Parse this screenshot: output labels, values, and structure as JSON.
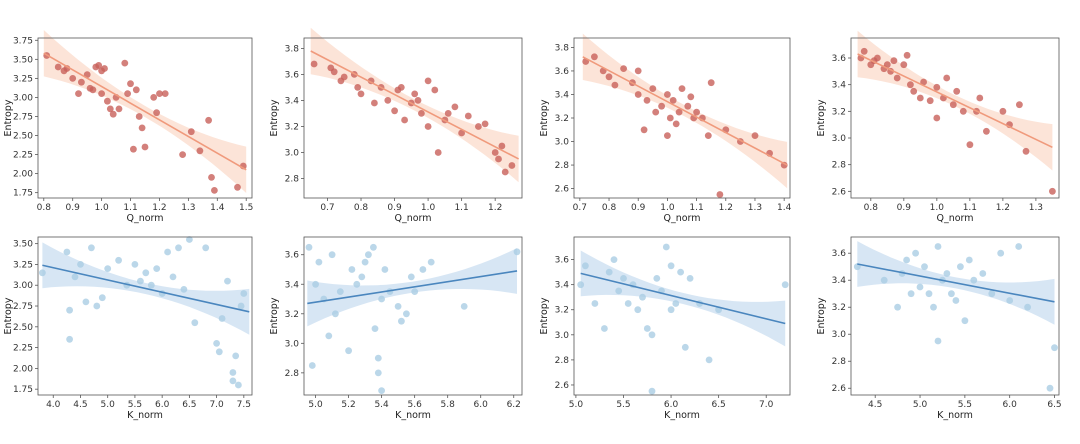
{
  "colors": {
    "q_point": "#c8605a",
    "q_line": "#f09a7c",
    "q_band": "#fbd9c8",
    "k_point": "#aacde3",
    "k_line": "#4a86be",
    "k_band": "#c6dcef",
    "frame": "#555555"
  },
  "chart_data": [
    {
      "type": "scatter",
      "xlabel": "Q_norm",
      "ylabel": "Entropy",
      "xlim": [
        0.78,
        1.52
      ],
      "ylim": [
        1.68,
        3.78
      ],
      "xticks": [
        0.8,
        0.9,
        1.0,
        1.1,
        1.2,
        1.3,
        1.4,
        1.5
      ],
      "yticks": [
        1.75,
        2.0,
        2.25,
        2.5,
        2.75,
        3.0,
        3.25,
        3.5,
        3.75
      ],
      "xtick_labels": [
        "0.8",
        "0.9",
        "1.0",
        "1.1",
        "1.2",
        "1.3",
        "1.4",
        "1.5"
      ],
      "ytick_labels": [
        "1.75",
        "2.00",
        "2.25",
        "2.50",
        "2.75",
        "3.00",
        "3.25",
        "3.50",
        "3.75"
      ],
      "fit": {
        "x": [
          0.8,
          1.5
        ],
        "y": [
          3.58,
          2.05
        ]
      },
      "points": {
        "x": [
          0.81,
          0.85,
          0.87,
          0.88,
          0.9,
          0.92,
          0.93,
          0.95,
          0.96,
          0.97,
          0.98,
          0.99,
          1.0,
          1.0,
          1.01,
          1.02,
          1.03,
          1.04,
          1.05,
          1.06,
          1.08,
          1.09,
          1.1,
          1.11,
          1.12,
          1.13,
          1.14,
          1.15,
          1.18,
          1.19,
          1.2,
          1.22,
          1.28,
          1.31,
          1.34,
          1.37,
          1.38,
          1.39,
          1.47,
          1.49
        ],
        "y": [
          3.55,
          3.4,
          3.35,
          3.38,
          3.25,
          3.05,
          3.2,
          3.3,
          3.12,
          3.1,
          3.4,
          3.42,
          3.35,
          3.05,
          3.38,
          2.95,
          2.85,
          2.78,
          3.0,
          2.85,
          3.45,
          3.05,
          3.18,
          2.32,
          3.1,
          2.75,
          2.6,
          2.35,
          3.0,
          2.8,
          3.05,
          3.05,
          2.25,
          2.55,
          2.3,
          2.7,
          1.95,
          1.78,
          1.82,
          2.1
        ]
      }
    },
    {
      "type": "scatter",
      "xlabel": "Q_norm",
      "ylabel": "Entropy",
      "xlim": [
        0.63,
        1.28
      ],
      "ylim": [
        2.65,
        3.88
      ],
      "xticks": [
        0.7,
        0.8,
        0.9,
        1.0,
        1.1,
        1.2
      ],
      "yticks": [
        2.8,
        3.0,
        3.2,
        3.4,
        3.6,
        3.8
      ],
      "xtick_labels": [
        "0.7",
        "0.8",
        "0.9",
        "1.0",
        "1.1",
        "1.2"
      ],
      "ytick_labels": [
        "2.8",
        "3.0",
        "3.2",
        "3.4",
        "3.6",
        "3.8"
      ],
      "fit": {
        "x": [
          0.65,
          1.27
        ],
        "y": [
          3.78,
          2.95
        ]
      },
      "points": {
        "x": [
          0.66,
          0.71,
          0.72,
          0.74,
          0.75,
          0.78,
          0.79,
          0.8,
          0.83,
          0.84,
          0.86,
          0.88,
          0.9,
          0.91,
          0.92,
          0.93,
          0.95,
          0.96,
          0.97,
          0.98,
          1.0,
          1.0,
          1.02,
          1.03,
          1.05,
          1.06,
          1.08,
          1.1,
          1.12,
          1.15,
          1.17,
          1.2,
          1.21,
          1.22,
          1.23,
          1.25
        ],
        "y": [
          3.68,
          3.65,
          3.62,
          3.55,
          3.58,
          3.6,
          3.5,
          3.45,
          3.55,
          3.38,
          3.5,
          3.4,
          3.32,
          3.48,
          3.5,
          3.25,
          3.38,
          3.45,
          3.4,
          3.3,
          3.55,
          3.2,
          3.48,
          3.0,
          3.25,
          3.3,
          3.35,
          3.15,
          3.28,
          3.2,
          3.22,
          3.0,
          2.95,
          3.05,
          2.85,
          2.9
        ]
      }
    },
    {
      "type": "scatter",
      "xlabel": "Q_norm",
      "ylabel": "Entropy",
      "xlim": [
        0.68,
        1.42
      ],
      "ylim": [
        2.52,
        3.88
      ],
      "xticks": [
        0.7,
        0.8,
        0.9,
        1.0,
        1.1,
        1.2,
        1.3,
        1.4
      ],
      "yticks": [
        2.6,
        2.8,
        3.0,
        3.2,
        3.4,
        3.6,
        3.8
      ],
      "xtick_labels": [
        "0.7",
        "0.8",
        "0.9",
        "1.0",
        "1.1",
        "1.2",
        "1.3",
        "1.4"
      ],
      "ytick_labels": [
        "2.6",
        "2.8",
        "3.0",
        "3.2",
        "3.4",
        "3.6",
        "3.8"
      ],
      "fit": {
        "x": [
          0.71,
          1.41
        ],
        "y": [
          3.72,
          2.8
        ]
      },
      "points": {
        "x": [
          0.72,
          0.75,
          0.78,
          0.8,
          0.82,
          0.85,
          0.88,
          0.9,
          0.9,
          0.92,
          0.93,
          0.95,
          0.96,
          0.98,
          1.0,
          1.0,
          1.01,
          1.02,
          1.03,
          1.04,
          1.05,
          1.07,
          1.08,
          1.09,
          1.1,
          1.12,
          1.14,
          1.15,
          1.18,
          1.2,
          1.25,
          1.3,
          1.35,
          1.4
        ],
        "y": [
          3.68,
          3.72,
          3.6,
          3.55,
          3.48,
          3.62,
          3.5,
          3.6,
          3.4,
          3.1,
          3.35,
          3.45,
          3.25,
          3.3,
          3.05,
          3.4,
          3.2,
          3.35,
          3.15,
          3.25,
          3.45,
          3.3,
          3.38,
          3.2,
          3.25,
          3.2,
          3.05,
          3.5,
          2.55,
          3.1,
          3.0,
          3.05,
          2.9,
          2.8
        ]
      }
    },
    {
      "type": "scatter",
      "xlabel": "Q_norm",
      "ylabel": "Entropy",
      "xlim": [
        0.74,
        1.37
      ],
      "ylim": [
        2.55,
        3.75
      ],
      "xticks": [
        0.8,
        0.9,
        1.0,
        1.1,
        1.2,
        1.3
      ],
      "yticks": [
        2.6,
        2.8,
        3.0,
        3.2,
        3.4,
        3.6
      ],
      "xtick_labels": [
        "0.8",
        "0.9",
        "1.0",
        "1.1",
        "1.2",
        "1.3"
      ],
      "ytick_labels": [
        "2.6",
        "2.8",
        "3.0",
        "3.2",
        "3.4",
        "3.6"
      ],
      "fit": {
        "x": [
          0.76,
          1.35
        ],
        "y": [
          3.63,
          2.93
        ]
      },
      "points": {
        "x": [
          0.77,
          0.78,
          0.8,
          0.81,
          0.82,
          0.84,
          0.85,
          0.86,
          0.87,
          0.88,
          0.9,
          0.91,
          0.92,
          0.93,
          0.95,
          0.96,
          0.98,
          1.0,
          1.0,
          1.02,
          1.03,
          1.05,
          1.06,
          1.08,
          1.1,
          1.12,
          1.13,
          1.15,
          1.2,
          1.22,
          1.25,
          1.27,
          1.35
        ],
        "y": [
          3.6,
          3.65,
          3.55,
          3.58,
          3.6,
          3.52,
          3.55,
          3.5,
          3.58,
          3.45,
          3.55,
          3.62,
          3.4,
          3.35,
          3.3,
          3.42,
          3.28,
          3.38,
          3.15,
          3.3,
          3.45,
          3.25,
          3.35,
          3.2,
          2.95,
          3.2,
          3.3,
          3.05,
          3.2,
          3.1,
          3.25,
          2.9,
          2.6
        ]
      }
    },
    {
      "type": "scatter",
      "xlabel": "K_norm",
      "ylabel": "Entropy",
      "xlim": [
        3.72,
        7.65
      ],
      "ylim": [
        1.68,
        3.58
      ],
      "xticks": [
        4.0,
        4.5,
        5.0,
        5.5,
        6.0,
        6.5,
        7.0,
        7.5
      ],
      "yticks": [
        1.75,
        2.0,
        2.25,
        2.5,
        2.75,
        3.0,
        3.25,
        3.5
      ],
      "xtick_labels": [
        "4.0",
        "4.5",
        "5.0",
        "5.5",
        "6.0",
        "6.5",
        "7.0",
        "7.5"
      ],
      "ytick_labels": [
        "1.75",
        "2.00",
        "2.25",
        "2.50",
        "2.75",
        "3.00",
        "3.25",
        "3.50"
      ],
      "fit": {
        "x": [
          3.8,
          7.6
        ],
        "y": [
          3.24,
          2.68
        ]
      },
      "points": {
        "x": [
          3.8,
          4.25,
          4.3,
          4.3,
          4.4,
          4.5,
          4.6,
          4.7,
          4.8,
          4.9,
          5.0,
          5.2,
          5.35,
          5.5,
          5.6,
          5.7,
          5.8,
          5.9,
          6.0,
          6.1,
          6.2,
          6.3,
          6.4,
          6.5,
          6.6,
          6.8,
          7.0,
          7.05,
          7.1,
          7.2,
          7.3,
          7.3,
          7.35,
          7.4,
          7.45,
          7.5
        ],
        "y": [
          3.15,
          3.4,
          2.7,
          2.35,
          3.1,
          3.25,
          2.8,
          3.45,
          2.75,
          2.85,
          3.2,
          3.3,
          3.0,
          3.25,
          3.05,
          3.15,
          3.0,
          3.2,
          2.9,
          3.4,
          3.1,
          3.45,
          2.95,
          3.55,
          2.55,
          3.45,
          2.3,
          2.2,
          2.6,
          3.05,
          1.85,
          1.95,
          2.15,
          1.8,
          2.75,
          2.9
        ]
      }
    },
    {
      "type": "scatter",
      "xlabel": "K_norm",
      "ylabel": "Entropy",
      "xlim": [
        4.93,
        6.25
      ],
      "ylim": [
        2.65,
        3.72
      ],
      "xticks": [
        5.0,
        5.2,
        5.4,
        5.6,
        5.8,
        6.0,
        6.2
      ],
      "yticks": [
        2.8,
        3.0,
        3.2,
        3.4,
        3.6
      ],
      "xtick_labels": [
        "5.0",
        "5.2",
        "5.4",
        "5.6",
        "5.8",
        "6.0",
        "6.2"
      ],
      "ytick_labels": [
        "2.8",
        "3.0",
        "3.2",
        "3.4",
        "3.6"
      ],
      "fit": {
        "x": [
          4.95,
          6.22
        ],
        "y": [
          3.27,
          3.49
        ]
      },
      "points": {
        "x": [
          4.96,
          4.98,
          5.0,
          5.02,
          5.05,
          5.08,
          5.1,
          5.12,
          5.15,
          5.2,
          5.22,
          5.25,
          5.28,
          5.3,
          5.32,
          5.35,
          5.36,
          5.38,
          5.38,
          5.4,
          5.4,
          5.42,
          5.45,
          5.5,
          5.52,
          5.55,
          5.58,
          5.6,
          5.65,
          5.7,
          5.9,
          6.22
        ],
        "y": [
          3.65,
          2.85,
          3.4,
          3.55,
          3.3,
          3.05,
          3.6,
          3.2,
          3.35,
          2.95,
          3.5,
          3.4,
          3.45,
          3.55,
          3.6,
          3.65,
          3.1,
          2.9,
          2.8,
          2.68,
          3.3,
          3.5,
          3.35,
          3.25,
          3.15,
          3.2,
          3.45,
          3.35,
          3.5,
          3.55,
          3.25,
          3.62
        ]
      }
    },
    {
      "type": "scatter",
      "xlabel": "K_norm",
      "ylabel": "Entropy",
      "xlim": [
        4.98,
        7.25
      ],
      "ylim": [
        2.52,
        3.78
      ],
      "xticks": [
        5.0,
        5.5,
        6.0,
        6.5,
        7.0
      ],
      "yticks": [
        2.6,
        2.8,
        3.0,
        3.2,
        3.4,
        3.6
      ],
      "xtick_labels": [
        "5.0",
        "5.5",
        "6.0",
        "6.5",
        "7.0"
      ],
      "ytick_labels": [
        "2.6",
        "2.8",
        "3.0",
        "3.2",
        "3.4",
        "3.6"
      ],
      "fit": {
        "x": [
          5.05,
          7.2
        ],
        "y": [
          3.49,
          3.09
        ]
      },
      "points": {
        "x": [
          5.05,
          5.1,
          5.2,
          5.3,
          5.35,
          5.4,
          5.45,
          5.5,
          5.55,
          5.6,
          5.65,
          5.7,
          5.75,
          5.8,
          5.8,
          5.85,
          5.9,
          5.95,
          6.0,
          6.0,
          6.05,
          6.1,
          6.15,
          6.2,
          6.3,
          6.4,
          6.5,
          7.2
        ],
        "y": [
          3.4,
          3.55,
          3.25,
          3.05,
          3.5,
          3.6,
          3.35,
          3.45,
          3.25,
          3.4,
          3.2,
          3.3,
          3.05,
          3.0,
          2.55,
          3.45,
          3.35,
          3.7,
          3.2,
          3.55,
          3.25,
          3.5,
          2.9,
          3.45,
          3.25,
          2.8,
          3.2,
          3.4
        ]
      }
    },
    {
      "type": "scatter",
      "xlabel": "K_norm",
      "ylabel": "Entropy",
      "xlim": [
        4.23,
        6.55
      ],
      "ylim": [
        2.55,
        3.72
      ],
      "xticks": [
        4.5,
        5.0,
        5.5,
        6.0,
        6.5
      ],
      "yticks": [
        2.6,
        2.8,
        3.0,
        3.2,
        3.4,
        3.6
      ],
      "xtick_labels": [
        "4.5",
        "5.0",
        "5.5",
        "6.0",
        "6.5"
      ],
      "ytick_labels": [
        "2.6",
        "2.8",
        "3.0",
        "3.2",
        "3.4",
        "3.6"
      ],
      "fit": {
        "x": [
          4.3,
          6.5
        ],
        "y": [
          3.52,
          3.24
        ]
      },
      "points": {
        "x": [
          4.3,
          4.6,
          4.75,
          4.8,
          4.85,
          4.9,
          4.95,
          5.0,
          5.05,
          5.1,
          5.15,
          5.2,
          5.2,
          5.25,
          5.3,
          5.35,
          5.4,
          5.45,
          5.5,
          5.55,
          5.6,
          5.7,
          5.8,
          5.9,
          6.0,
          6.1,
          6.2,
          6.45,
          6.5
        ],
        "y": [
          3.5,
          3.4,
          3.2,
          3.45,
          3.55,
          3.3,
          3.6,
          3.35,
          3.5,
          3.3,
          3.2,
          3.65,
          2.95,
          3.4,
          3.45,
          3.3,
          3.25,
          3.5,
          3.1,
          3.55,
          3.4,
          3.45,
          3.3,
          3.6,
          3.25,
          3.65,
          3.2,
          2.6,
          2.9
        ]
      }
    }
  ]
}
